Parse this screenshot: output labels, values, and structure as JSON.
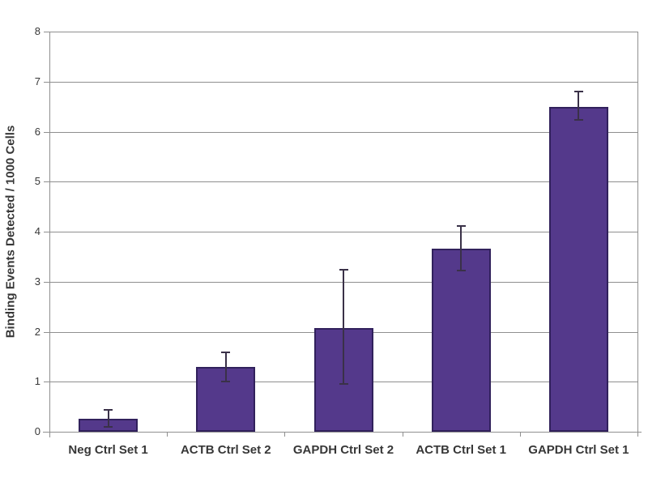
{
  "chart_data": {
    "type": "bar",
    "title": "",
    "xlabel": "",
    "ylabel": "Binding Events Detected / 1000 Cells",
    "categories": [
      "Neg Ctrl Set 1",
      "ACTB Ctrl Set 2",
      "GAPDH Ctrl Set 2",
      "ACTB Ctrl Set 1",
      "GAPDH Ctrl Set 1"
    ],
    "values": [
      0.26,
      1.3,
      2.08,
      3.66,
      6.5
    ],
    "errors_plus": [
      0.17,
      0.28,
      1.16,
      0.45,
      0.3
    ],
    "errors_minus": [
      0.16,
      0.3,
      1.13,
      0.44,
      0.27
    ],
    "ylim": [
      0,
      8
    ],
    "yticks": [
      0,
      1,
      2,
      3,
      4,
      5,
      6,
      7,
      8
    ],
    "ytick_labels": [
      "0",
      "1",
      "2",
      "3",
      "4",
      "5",
      "6",
      "7",
      "8"
    ],
    "grid": true,
    "legend": false,
    "colors": {
      "bar_fill": "#54398b",
      "bar_border": "#31215c",
      "error_bar": "#3a3148",
      "grid_line": "#8f8f8f",
      "axis_line": "#8f8f8f",
      "text": "#373737",
      "background": "#ffffff"
    }
  }
}
